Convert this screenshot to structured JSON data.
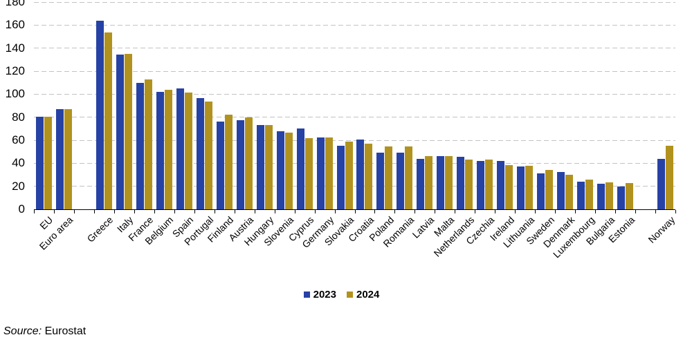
{
  "chart_data": {
    "type": "bar",
    "title": "",
    "xlabel": "",
    "ylabel": "",
    "ylim": [
      0,
      180
    ],
    "ytick_step": 20,
    "grid": "horizontal-dashed",
    "legend_position": "bottom-center",
    "categories": [
      "EU",
      "Euro area",
      "",
      "Greece",
      "Italy",
      "France",
      "Belgium",
      "Spain",
      "Portugal",
      "Finland",
      "Austria",
      "Hungary",
      "Slovenia",
      "Cyprus",
      "Germany",
      "Slovakia",
      "Croatia",
      "Poland",
      "Romania",
      "Latvia",
      "Malta",
      "Netherlands",
      "Czechia",
      "Ireland",
      "Lithuania",
      "Sweden",
      "Denmark",
      "Luxembourg",
      "Bulgaria",
      "Estonia",
      "",
      "Norway"
    ],
    "series": [
      {
        "name": "2023",
        "color": "#2742A5",
        "values": [
          80.5,
          87,
          null,
          164,
          134.5,
          110,
          102,
          105,
          96.5,
          76.5,
          77.5,
          73,
          68,
          70.5,
          62.5,
          55.5,
          60.5,
          49,
          49,
          44,
          46.5,
          45.5,
          42,
          42,
          37,
          31.5,
          32.5,
          24,
          22,
          20,
          null,
          44
        ]
      },
      {
        "name": "2024",
        "color": "#B2921F",
        "values": [
          80.5,
          87,
          null,
          153.5,
          135,
          113,
          104,
          101.5,
          93.5,
          82,
          80,
          73,
          66.5,
          62,
          62.5,
          59,
          57,
          54.5,
          54.5,
          46.5,
          46,
          43.5,
          43,
          38.5,
          38,
          34,
          30,
          26,
          23.5,
          23,
          null,
          55
        ]
      }
    ]
  },
  "legend": {
    "items": [
      {
        "label": "2023",
        "color": "#2742A5"
      },
      {
        "label": "2024",
        "color": "#B2921F"
      }
    ]
  },
  "source": {
    "prefix": "Source:",
    "text": " Eurostat"
  },
  "axis_colors": {
    "gridline": "#c2c2c2",
    "axis": "#000000",
    "text": "#000000"
  }
}
